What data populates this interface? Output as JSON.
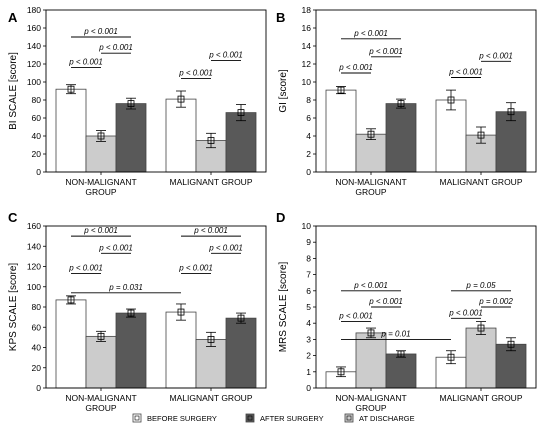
{
  "legend": [
    {
      "label": "BEFORE SURGERY",
      "color": "#ffffff"
    },
    {
      "label": "AFTER SURGERY",
      "color": "#595959"
    },
    {
      "label": "AT DISCHARGE",
      "color": "#cccccc"
    }
  ],
  "chart_data": [
    {
      "type": "bar",
      "panel": "A",
      "ylabel": "BI SCALE [score]",
      "ylim": [
        0,
        180
      ],
      "ystep": 20,
      "categories": [
        "NON-MALIGNANT|GROUP",
        "MALIGNANT GROUP"
      ],
      "series": [
        {
          "values": [
            92,
            81
          ],
          "err": [
            5,
            9
          ],
          "color": "#ffffff"
        },
        {
          "values": [
            40,
            35
          ],
          "err": [
            6,
            8
          ],
          "color": "#cccccc"
        },
        {
          "values": [
            76,
            66
          ],
          "err": [
            6,
            9
          ],
          "color": "#595959"
        }
      ],
      "annotations": [
        {
          "text": "p < 0.001",
          "cat": 0,
          "from": 0,
          "to": 1,
          "y": 116
        },
        {
          "text": "p < 0.001",
          "cat": 0,
          "from": 1,
          "to": 2,
          "y": 132
        },
        {
          "text": "p < 0.001",
          "cat": 0,
          "from": 0,
          "to": 2,
          "y": 150
        },
        {
          "text": "p < 0.001",
          "cat": 1,
          "from": 0,
          "to": 1,
          "y": 104
        },
        {
          "text": "p < 0.001",
          "cat": 1,
          "from": 1,
          "to": 2,
          "y": 124
        }
      ]
    },
    {
      "type": "bar",
      "panel": "B",
      "ylabel": "GI [score]",
      "ylim": [
        0,
        18
      ],
      "ystep": 2,
      "categories": [
        "NON-MALIGNANT|GROUP",
        "MALIGNANT GROUP"
      ],
      "series": [
        {
          "values": [
            9.1,
            8.0
          ],
          "err": [
            0.4,
            1.1
          ],
          "color": "#ffffff"
        },
        {
          "values": [
            4.2,
            4.1
          ],
          "err": [
            0.6,
            0.9
          ],
          "color": "#cccccc"
        },
        {
          "values": [
            7.6,
            6.7
          ],
          "err": [
            0.5,
            1.0
          ],
          "color": "#595959"
        }
      ],
      "annotations": [
        {
          "text": "p < 0.001",
          "cat": 0,
          "from": 0,
          "to": 1,
          "y": 11.0
        },
        {
          "text": "p < 0.001",
          "cat": 0,
          "from": 1,
          "to": 2,
          "y": 12.8
        },
        {
          "text": "p < 0.001",
          "cat": 0,
          "from": 0,
          "to": 2,
          "y": 14.8
        },
        {
          "text": "p < 0.001",
          "cat": 1,
          "from": 0,
          "to": 1,
          "y": 10.5
        },
        {
          "text": "p < 0.001",
          "cat": 1,
          "from": 1,
          "to": 2,
          "y": 12.3
        }
      ]
    },
    {
      "type": "bar",
      "panel": "C",
      "ylabel": "KPS SCALE [score]",
      "ylim": [
        0,
        160
      ],
      "ystep": 20,
      "categories": [
        "NON-MALIGNANT|GROUP",
        "MALIGNANT GROUP"
      ],
      "series": [
        {
          "values": [
            87,
            75
          ],
          "err": [
            4,
            8
          ],
          "color": "#ffffff"
        },
        {
          "values": [
            51,
            48
          ],
          "err": [
            5,
            7
          ],
          "color": "#cccccc"
        },
        {
          "values": [
            74,
            69
          ],
          "err": [
            4,
            5
          ],
          "color": "#595959"
        }
      ],
      "annotations": [
        {
          "text": "p < 0.001",
          "cat": 0,
          "from": 0,
          "to": 1,
          "y": 113
        },
        {
          "text": "p < 0.001",
          "cat": 0,
          "from": 1,
          "to": 2,
          "y": 133
        },
        {
          "text": "p < 0.001",
          "cat": 0,
          "from": 0,
          "to": 2,
          "y": 150
        },
        {
          "text": "p < 0.001",
          "cat": 1,
          "from": 0,
          "to": 1,
          "y": 113
        },
        {
          "text": "p < 0.001",
          "cat": 1,
          "from": 1,
          "to": 2,
          "y": 133
        },
        {
          "text": "p < 0.001",
          "cat": 1,
          "from": 0,
          "to": 2,
          "y": 150
        },
        {
          "text": "p = 0.031",
          "cat": "between",
          "fromCat": 0,
          "toCat": 1,
          "bar": 0,
          "y": 94
        }
      ]
    },
    {
      "type": "bar",
      "panel": "D",
      "ylabel": "MRS SCALE [score]",
      "ylim": [
        0,
        10
      ],
      "ystep": 1,
      "categories": [
        "NON-MALIGNANT|GROUP",
        "MALIGNANT GROUP"
      ],
      "series": [
        {
          "values": [
            1.0,
            1.9
          ],
          "err": [
            0.3,
            0.4
          ],
          "color": "#ffffff"
        },
        {
          "values": [
            3.4,
            3.7
          ],
          "err": [
            0.3,
            0.4
          ],
          "color": "#cccccc"
        },
        {
          "values": [
            2.1,
            2.7
          ],
          "err": [
            0.2,
            0.4
          ],
          "color": "#595959"
        }
      ],
      "annotations": [
        {
          "text": "p < 0.001",
          "cat": 0,
          "from": 0,
          "to": 1,
          "y": 4.1
        },
        {
          "text": "p < 0.001",
          "cat": 0,
          "from": 1,
          "to": 2,
          "y": 5.0
        },
        {
          "text": "p < 0.001",
          "cat": 0,
          "from": 0,
          "to": 2,
          "y": 6.0
        },
        {
          "text": "p < 0.001",
          "cat": 1,
          "from": 0,
          "to": 1,
          "y": 4.3
        },
        {
          "text": "p = 0.002",
          "cat": 1,
          "from": 1,
          "to": 2,
          "y": 5.0
        },
        {
          "text": "p = 0.05",
          "cat": 1,
          "from": 0,
          "to": 2,
          "y": 6.0
        },
        {
          "text": "p = 0.01",
          "cat": "between",
          "fromCat": 0,
          "toCat": 1,
          "bar": 0,
          "y": 3.0
        }
      ]
    }
  ]
}
